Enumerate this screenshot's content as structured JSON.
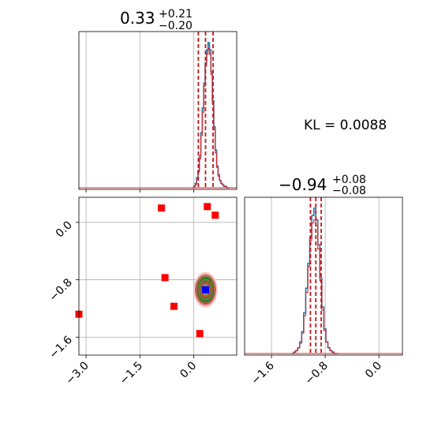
{
  "chart_data": [
    {
      "type": "histogram",
      "panel": "top-left",
      "title": {
        "median": "0.33",
        "upper": "+0.21",
        "lower": "−0.20"
      },
      "xlim": [
        -3.2,
        1.2
      ],
      "grid": true,
      "quantile_lines": [
        0.13,
        0.33,
        0.54
      ],
      "bins_x": [
        0.0,
        0.04,
        0.08,
        0.12,
        0.16,
        0.2,
        0.24,
        0.28,
        0.32,
        0.36,
        0.4,
        0.44,
        0.48,
        0.52,
        0.56,
        0.6,
        0.64,
        0.68,
        0.72,
        0.76,
        0.8,
        0.84,
        0.88,
        0.92,
        0.96,
        1.0
      ],
      "series": [
        {
          "color": "#1f77b4",
          "counts": [
            0.01,
            0.03,
            0.07,
            0.12,
            0.22,
            0.38,
            0.55,
            0.72,
            0.86,
            0.95,
            1.0,
            0.95,
            0.8,
            0.6,
            0.42,
            0.26,
            0.15,
            0.09,
            0.05,
            0.03,
            0.02,
            0.01,
            0.01,
            0.0,
            0.0
          ]
        },
        {
          "color": "#d62728",
          "counts": [
            0.01,
            0.02,
            0.06,
            0.11,
            0.2,
            0.36,
            0.52,
            0.7,
            0.84,
            0.92,
            0.96,
            0.92,
            0.78,
            0.58,
            0.4,
            0.24,
            0.14,
            0.08,
            0.05,
            0.03,
            0.02,
            0.01,
            0.01,
            0.0,
            0.0
          ]
        }
      ]
    },
    {
      "type": "histogram",
      "panel": "bottom-right",
      "title": {
        "median": "−0.94",
        "upper": "+0.08",
        "lower": "−0.08"
      },
      "xlim": [
        -2.0,
        0.35
      ],
      "grid": true,
      "x_ticks": [
        "−1.6",
        "−0.8",
        "0.0"
      ],
      "x_tick_values": [
        -1.6,
        -0.8,
        0.0
      ],
      "quantile_lines": [
        -1.02,
        -0.94,
        -0.86
      ],
      "bins_x": [
        -1.3,
        -1.27,
        -1.24,
        -1.21,
        -1.18,
        -1.15,
        -1.12,
        -1.09,
        -1.06,
        -1.03,
        -1.0,
        -0.97,
        -0.94,
        -0.91,
        -0.88,
        -0.85,
        -0.82,
        -0.79,
        -0.76,
        -0.73,
        -0.7,
        -0.67,
        -0.64,
        -0.61
      ],
      "series": [
        {
          "color": "#1f77b4",
          "counts": [
            0.0,
            0.01,
            0.02,
            0.04,
            0.08,
            0.15,
            0.28,
            0.45,
            0.62,
            0.8,
            0.95,
            1.0,
            0.92,
            0.75,
            0.52,
            0.32,
            0.17,
            0.08,
            0.04,
            0.02,
            0.01,
            0.0,
            0.0
          ]
        },
        {
          "color": "#d62728",
          "counts": [
            0.0,
            0.01,
            0.02,
            0.04,
            0.07,
            0.14,
            0.26,
            0.42,
            0.6,
            0.78,
            0.9,
            0.92,
            0.88,
            0.72,
            0.5,
            0.3,
            0.16,
            0.08,
            0.04,
            0.02,
            0.01,
            0.0,
            0.0
          ]
        }
      ]
    },
    {
      "type": "scatter",
      "panel": "bottom-left",
      "xlim": [
        -3.2,
        1.2
      ],
      "ylim": [
        -1.85,
        0.35
      ],
      "grid": true,
      "x_ticks": [
        "−3.0",
        "−1.5",
        "0.0"
      ],
      "x_tick_values": [
        -3.0,
        -1.5,
        0.0
      ],
      "y_ticks": [
        "0.0",
        "−0.8",
        "−1.6"
      ],
      "y_tick_values": [
        0.0,
        -0.8,
        -1.6
      ],
      "outliers": {
        "color": "#ff0000",
        "marker": "square",
        "points": [
          [
            -0.9,
            0.2
          ],
          [
            0.38,
            0.22
          ],
          [
            0.6,
            0.1
          ],
          [
            -0.8,
            -0.77
          ],
          [
            -0.55,
            -1.17
          ],
          [
            0.17,
            -1.55
          ],
          [
            -3.2,
            -1.28
          ]
        ]
      },
      "blob": {
        "center": [
          0.33,
          -0.94
        ],
        "rx": 0.6,
        "ry": 0.2,
        "colors": [
          "#f4c8c8",
          "#e39b9b",
          "#1f7a1f",
          "#2e8b2e",
          "#e23b3b",
          "#7a9f7a",
          "#ff2020"
        ]
      },
      "truth": {
        "point": [
          0.33,
          -0.94
        ],
        "color": "#0000ff"
      }
    }
  ],
  "kl": {
    "text": "KL = 0.0088"
  }
}
